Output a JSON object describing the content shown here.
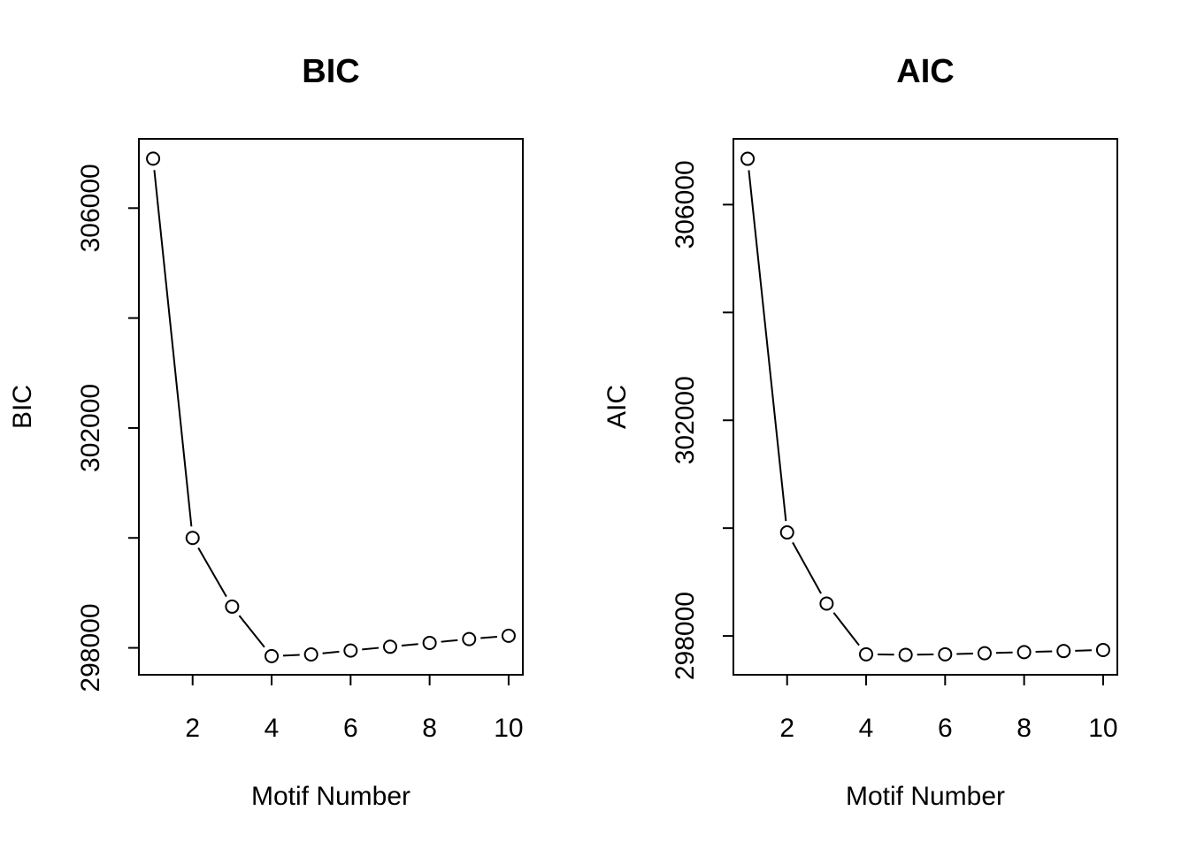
{
  "chart_data": [
    {
      "type": "line",
      "title": "BIC",
      "xlabel": "Motif Number",
      "ylabel": "BIC",
      "x": [
        1,
        2,
        3,
        4,
        5,
        6,
        7,
        8,
        9,
        10
      ],
      "series": [
        {
          "values": [
            306900,
            300000,
            298750,
            297850,
            297880,
            297950,
            298020,
            298090,
            298160,
            298220
          ]
        }
      ],
      "xticks": [
        2,
        4,
        6,
        8,
        10
      ],
      "yticks": [
        298000,
        300000,
        302000,
        304000,
        306000
      ],
      "ytick_labels": [
        "298000",
        "",
        "302000",
        "",
        "306000"
      ],
      "xlim": [
        0.64,
        10.36
      ],
      "ylim": [
        297510,
        307260
      ],
      "grid": false,
      "legend": "none"
    },
    {
      "type": "line",
      "title": "AIC",
      "xlabel": "Motif Number",
      "ylabel": "AIC",
      "x": [
        1,
        2,
        3,
        4,
        5,
        6,
        7,
        8,
        9,
        10
      ],
      "series": [
        {
          "values": [
            306850,
            299920,
            298600,
            297660,
            297650,
            297660,
            297680,
            297700,
            297720,
            297740
          ]
        }
      ],
      "xticks": [
        2,
        4,
        6,
        8,
        10
      ],
      "yticks": [
        298000,
        300000,
        302000,
        304000,
        306000
      ],
      "ytick_labels": [
        "298000",
        "",
        "302000",
        "",
        "306000"
      ],
      "xlim": [
        0.64,
        10.36
      ],
      "ylim": [
        297280,
        307220
      ],
      "grid": false,
      "legend": "none"
    }
  ]
}
